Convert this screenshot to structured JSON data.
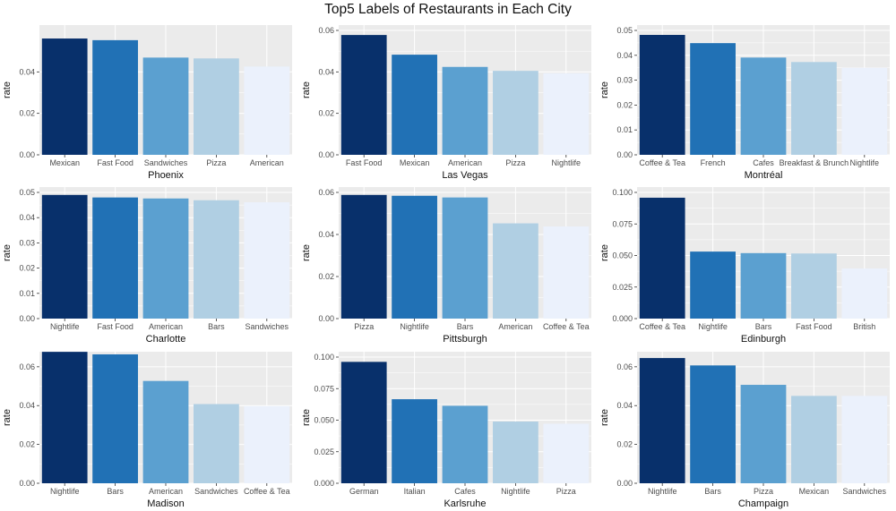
{
  "title": "Top5 Labels of Restaurants in Each City",
  "palette": [
    "#08306B",
    "#2171B5",
    "#5BA0D0",
    "#B0CFE3",
    "#EBF1FC"
  ],
  "panel_bg": "#EBEBEB",
  "grid_color": "#FFFFFF",
  "chart_data": [
    {
      "type": "bar",
      "xlabel": "Phoenix",
      "ylabel": "rate",
      "categories": [
        "Mexican",
        "Fast Food",
        "Sandwiches",
        "Pizza",
        "American"
      ],
      "values": [
        0.0561,
        0.0553,
        0.0469,
        0.0465,
        0.0426
      ],
      "ylim": [
        0,
        0.06
      ],
      "yticks": [
        0,
        0.02,
        0.04
      ],
      "yticklabels": [
        "0.00",
        "0.02",
        "0.04"
      ]
    },
    {
      "type": "bar",
      "xlabel": "Las Vegas",
      "ylabel": "rate",
      "categories": [
        "Fast Food",
        "Mexican",
        "American",
        "Pizza",
        "Nightlife"
      ],
      "values": [
        0.0578,
        0.0483,
        0.0424,
        0.0405,
        0.0393
      ],
      "ylim": [
        0,
        0.06
      ],
      "yticks": [
        0,
        0.02,
        0.04,
        0.06
      ],
      "yticklabels": [
        "0.00",
        "0.02",
        "0.04",
        "0.06"
      ]
    },
    {
      "type": "bar",
      "xlabel": "Montréal",
      "ylabel": "rate",
      "categories": [
        "Coffee & Tea",
        "French",
        "Cafes",
        "Breakfast & Brunch",
        "Nightlife"
      ],
      "values": [
        0.0482,
        0.0449,
        0.0391,
        0.0373,
        0.035
      ],
      "ylim": [
        0,
        0.05
      ],
      "yticks": [
        0,
        0.01,
        0.02,
        0.03,
        0.04,
        0.05
      ],
      "yticklabels": [
        "0.00",
        "0.01",
        "0.02",
        "0.03",
        "0.04",
        "0.05"
      ]
    },
    {
      "type": "bar",
      "xlabel": "Charlotte",
      "ylabel": "rate",
      "categories": [
        "Nightlife",
        "Fast Food",
        "American",
        "Bars",
        "Sandwiches"
      ],
      "values": [
        0.049,
        0.048,
        0.0476,
        0.0469,
        0.0461
      ],
      "ylim": [
        0,
        0.05
      ],
      "yticks": [
        0,
        0.01,
        0.02,
        0.03,
        0.04,
        0.05
      ],
      "yticklabels": [
        "0.00",
        "0.01",
        "0.02",
        "0.03",
        "0.04",
        "0.05"
      ]
    },
    {
      "type": "bar",
      "xlabel": "Pittsburgh",
      "ylabel": "rate",
      "categories": [
        "Pizza",
        "Nightlife",
        "Bars",
        "American",
        "Coffee & Tea"
      ],
      "values": [
        0.0588,
        0.0584,
        0.0576,
        0.0453,
        0.0438
      ],
      "ylim": [
        0,
        0.06
      ],
      "yticks": [
        0,
        0.02,
        0.04,
        0.06
      ],
      "yticklabels": [
        "0.00",
        "0.02",
        "0.04",
        "0.06"
      ]
    },
    {
      "type": "bar",
      "xlabel": "Edinburgh",
      "ylabel": "rate",
      "categories": [
        "Coffee & Tea",
        "Nightlife",
        "Bars",
        "Fast Food",
        "British"
      ],
      "values": [
        0.0958,
        0.0531,
        0.0519,
        0.0516,
        0.0397
      ],
      "ylim": [
        0,
        0.1
      ],
      "yticks": [
        0,
        0.025,
        0.05,
        0.075,
        0.1
      ],
      "yticklabels": [
        "0.000",
        "0.025",
        "0.050",
        "0.075",
        "0.100"
      ]
    },
    {
      "type": "bar",
      "xlabel": "Madison",
      "ylabel": "rate",
      "categories": [
        "Nightlife",
        "Bars",
        "American",
        "Sandwiches",
        "Coffee & Tea"
      ],
      "values": [
        0.0677,
        0.0664,
        0.0527,
        0.0408,
        0.0397
      ],
      "ylim": [
        0,
        0.065
      ],
      "yticks": [
        0,
        0.02,
        0.04,
        0.06
      ],
      "yticklabels": [
        "0.00",
        "0.02",
        "0.04",
        "0.06"
      ]
    },
    {
      "type": "bar",
      "xlabel": "Karlsruhe",
      "ylabel": "rate",
      "categories": [
        "German",
        "Italian",
        "Cafes",
        "Nightlife",
        "Pizza"
      ],
      "values": [
        0.0962,
        0.0666,
        0.0614,
        0.0489,
        0.0472
      ],
      "ylim": [
        0,
        0.1
      ],
      "yticks": [
        0,
        0.025,
        0.05,
        0.075,
        0.1
      ],
      "yticklabels": [
        "0.000",
        "0.025",
        "0.050",
        "0.075",
        "0.100"
      ]
    },
    {
      "type": "bar",
      "xlabel": "Champaign",
      "ylabel": "rate",
      "categories": [
        "Nightlife",
        "Bars",
        "Pizza",
        "Mexican",
        "Sandwiches"
      ],
      "values": [
        0.0645,
        0.0607,
        0.0507,
        0.045,
        0.045
      ],
      "ylim": [
        0,
        0.065
      ],
      "yticks": [
        0,
        0.02,
        0.04,
        0.06
      ],
      "yticklabels": [
        "0.00",
        "0.02",
        "0.04",
        "0.06"
      ]
    }
  ]
}
